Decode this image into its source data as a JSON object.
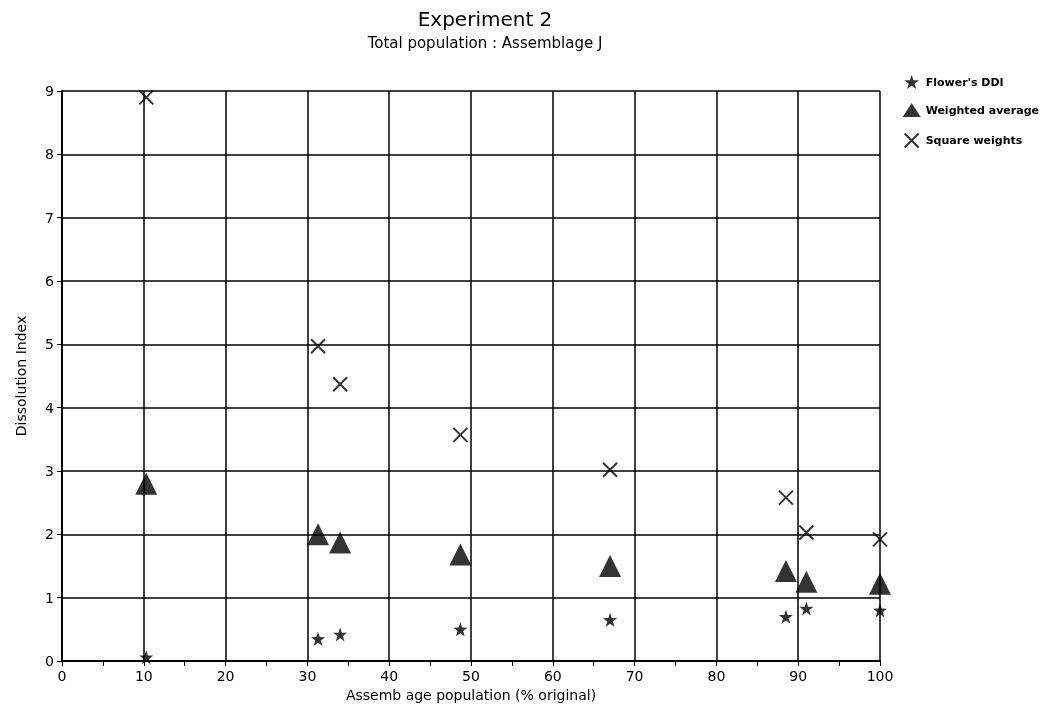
{
  "chart_data": {
    "type": "scatter",
    "title": "Experiment 2",
    "subtitle": "Total population : Assemblage J",
    "xlabel": "Assemb age population (% original)",
    "ylabel": "Dissolution Index",
    "x": [
      10.3,
      31.3,
      34,
      48.7,
      67,
      88.5,
      91,
      100
    ],
    "series": [
      {
        "name": "Flower's DDI",
        "color": "#000000",
        "marker": "star",
        "values": [
          0.06,
          0.35,
          0.42,
          0.5,
          0.65,
          0.7,
          0.83,
          0.8
        ]
      },
      {
        "name": "Weighted average",
        "color": "#000000",
        "marker": "triangle",
        "values": [
          2.8,
          2.0,
          1.87,
          1.68,
          1.5,
          1.42,
          1.25,
          1.22
        ]
      },
      {
        "name": "Square weights",
        "color": "#000000",
        "marker": "cross",
        "values": [
          8.9,
          4.97,
          4.37,
          3.57,
          3.02,
          2.58,
          2.03,
          1.92
        ]
      }
    ],
    "xlim": [
      0,
      100
    ],
    "xticks": [
      0,
      {
        "value": 5,
        "label": null
      },
      10,
      {
        "value": 15,
        "label": null
      },
      20,
      {
        "value": 25,
        "label": null
      },
      30,
      {
        "value": 35,
        "label": null
      },
      40,
      {
        "value": 45,
        "label": null
      },
      50,
      {
        "value": 55,
        "label": null
      },
      60,
      {
        "value": 65,
        "label": null
      },
      70,
      {
        "value": 75,
        "label": null
      },
      80,
      {
        "value": 85,
        "label": null
      },
      90,
      {
        "value": 95,
        "label": null
      },
      100
    ],
    "ylim": [
      0,
      9
    ],
    "yticks": [
      0,
      1,
      2,
      3,
      4,
      5,
      6,
      7,
      8,
      9
    ],
    "grid": true,
    "legend": "top right"
  }
}
